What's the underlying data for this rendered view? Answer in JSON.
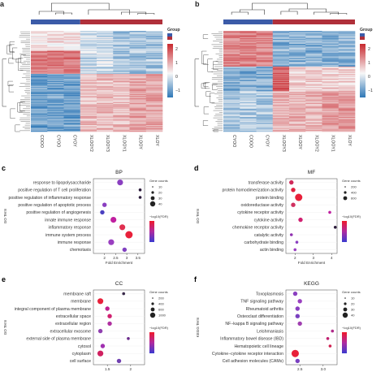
{
  "heatmap_a": {
    "letter": "a",
    "legend_title": "Group",
    "legend_ticks": [
      "2",
      "1",
      "0",
      "−1"
    ],
    "columns": [
      "COOO",
      "CYOO",
      "CYOY",
      "XLOOY2",
      "XLOOY3",
      "XLOOY1",
      "XLOOY",
      "XLOY"
    ]
  },
  "heatmap_b": {
    "letter": "b",
    "legend_title": "Group",
    "legend_ticks": [
      "2",
      "1",
      "0",
      "−1"
    ],
    "columns": [
      "CYOO",
      "COOO",
      "CYOY",
      "XLOOY3",
      "XLOOY",
      "XLOOY2",
      "XLOOY1",
      "XLOY"
    ]
  },
  "colors": {
    "blue": "#3b5ba8",
    "red": "#b0303a",
    "heat_low": "#2f78b7",
    "heat_mid": "#f7f7f7",
    "heat_high": "#c8282e"
  },
  "chart_data": [
    {
      "type": "scatter",
      "panel": "c",
      "title": "BP",
      "ylabel": "GO Term",
      "xlabel": "Fold Enrichment",
      "xticks": [
        "2",
        "2.5",
        "3",
        "3.5"
      ],
      "xlim": [
        1.5,
        3.8
      ],
      "categories": [
        "response to lipopolysaccharide",
        "positive regulation of T cell proliferation",
        "positive regulation of inflammatory response",
        "positive regulation of apoptotic process",
        "positive regulation of angiogenesis",
        "innate immune response",
        "inflammatory response",
        "immune system process",
        "immune response",
        "chemotaxis"
      ],
      "x": [
        2.7,
        3.6,
        3.6,
        2.0,
        1.9,
        2.4,
        2.8,
        3.1,
        2.3,
        2.9
      ],
      "size": [
        3,
        1,
        1,
        2,
        2,
        3,
        3,
        4,
        3,
        2
      ],
      "color": [
        "#8a3fc0",
        "#2a1a3a",
        "#2a1a3a",
        "#8a3fc0",
        "#4a3fc0",
        "#c020a0",
        "#e03050",
        "#e8203a",
        "#9a3fc0",
        "#8040c0"
      ],
      "legend_size_title": "Gene counts",
      "legend_size_labels": [
        "10",
        "20",
        "30",
        "40"
      ],
      "legend_color_title": "−log10(FDR)"
    },
    {
      "type": "scatter",
      "panel": "d",
      "title": "MF",
      "ylabel": "GO Term",
      "xlabel": "Fold Enrichment",
      "xticks": [
        "2",
        "3",
        "4"
      ],
      "xlim": [
        1.5,
        4.3
      ],
      "categories": [
        "transferase activity",
        "protein homodimerization activity",
        "protein binding",
        "oxidoreductase activity",
        "cytokine receptor activity",
        "cytokine activity",
        "chemokine receptor activity",
        "catalytic activity",
        "carbohydrate binding",
        "actin binding"
      ],
      "x": [
        1.8,
        1.9,
        2.2,
        1.9,
        3.9,
        2.3,
        4.2,
        1.8,
        2.1,
        2.0
      ],
      "size": [
        2,
        2,
        4,
        2,
        1,
        2,
        1,
        1,
        1,
        1
      ],
      "color": [
        "#d02a5a",
        "#e02040",
        "#e8203a",
        "#d03060",
        "#c020a0",
        "#d02070",
        "#2a1a3a",
        "#9030b0",
        "#8a3fc0",
        "#9a40c0"
      ],
      "legend_size_title": "Gene counts",
      "legend_size_labels": [
        "200",
        "400",
        "600"
      ],
      "legend_color_title": "−log10(FDR)"
    },
    {
      "type": "scatter",
      "panel": "e",
      "title": "CC",
      "ylabel": "GO Term",
      "xlabel": "",
      "xticks": [
        "1.5",
        "2"
      ],
      "xlim": [
        1.2,
        2.3
      ],
      "categories": [
        "membrane raft",
        "membrane",
        "integral component of plasma membrane",
        "extracellular space",
        "extracellular region",
        "extracellular exosome",
        "external side of plasma membrane",
        "cytosol",
        "cytoplasm",
        "cell surface"
      ],
      "x": [
        1.85,
        1.35,
        1.5,
        1.55,
        1.55,
        1.35,
        1.95,
        1.4,
        1.35,
        1.75
      ],
      "size": [
        1,
        3,
        2,
        2,
        2,
        2,
        1,
        2,
        3,
        2
      ],
      "color": [
        "#3a2a4a",
        "#e8203a",
        "#c02090",
        "#d02070",
        "#b030a0",
        "#9040b0",
        "#6a2a8a",
        "#a030b0",
        "#d02060",
        "#7040b0"
      ],
      "legend_size_title": "Gene counts",
      "legend_size_labels": [
        "200",
        "400",
        "600",
        "1000"
      ],
      "legend_color_title": "−log10(FDR)"
    },
    {
      "type": "scatter",
      "panel": "f",
      "title": "KEGG",
      "ylabel": "KEGG Term",
      "xlabel": "",
      "xticks": [
        "2.5",
        "3.0"
      ],
      "xlim": [
        2.2,
        3.3
      ],
      "categories": [
        "Toxoplasmosis",
        "TNF signaling pathway",
        "Rheumatoid arthritis",
        "Osteoclast differentiation",
        "NF−kappa B signaling pathway",
        "Leishmaniasis",
        "Inflammatory bowel disease (IBD)",
        "Hematopoietic cell lineage",
        "Cytokine−cytokine receptor interaction",
        "Cell adhesion molecules (CAMs)"
      ],
      "x": [
        2.4,
        2.5,
        2.45,
        2.45,
        2.5,
        3.2,
        3.1,
        3.15,
        2.4,
        2.45
      ],
      "size": [
        2,
        2,
        2,
        2,
        2,
        1,
        1,
        1,
        4,
        2
      ],
      "color": [
        "#8a3fc0",
        "#9a40c0",
        "#8a3fc0",
        "#7a40c0",
        "#a03fb0",
        "#b02a8a",
        "#c02070",
        "#d02050",
        "#e8203a",
        "#7a40c0"
      ],
      "legend_size_title": "Gene counts",
      "legend_size_labels": [
        "10",
        "20",
        "30",
        "40"
      ],
      "legend_color_title": "−log10(FDR)"
    }
  ]
}
